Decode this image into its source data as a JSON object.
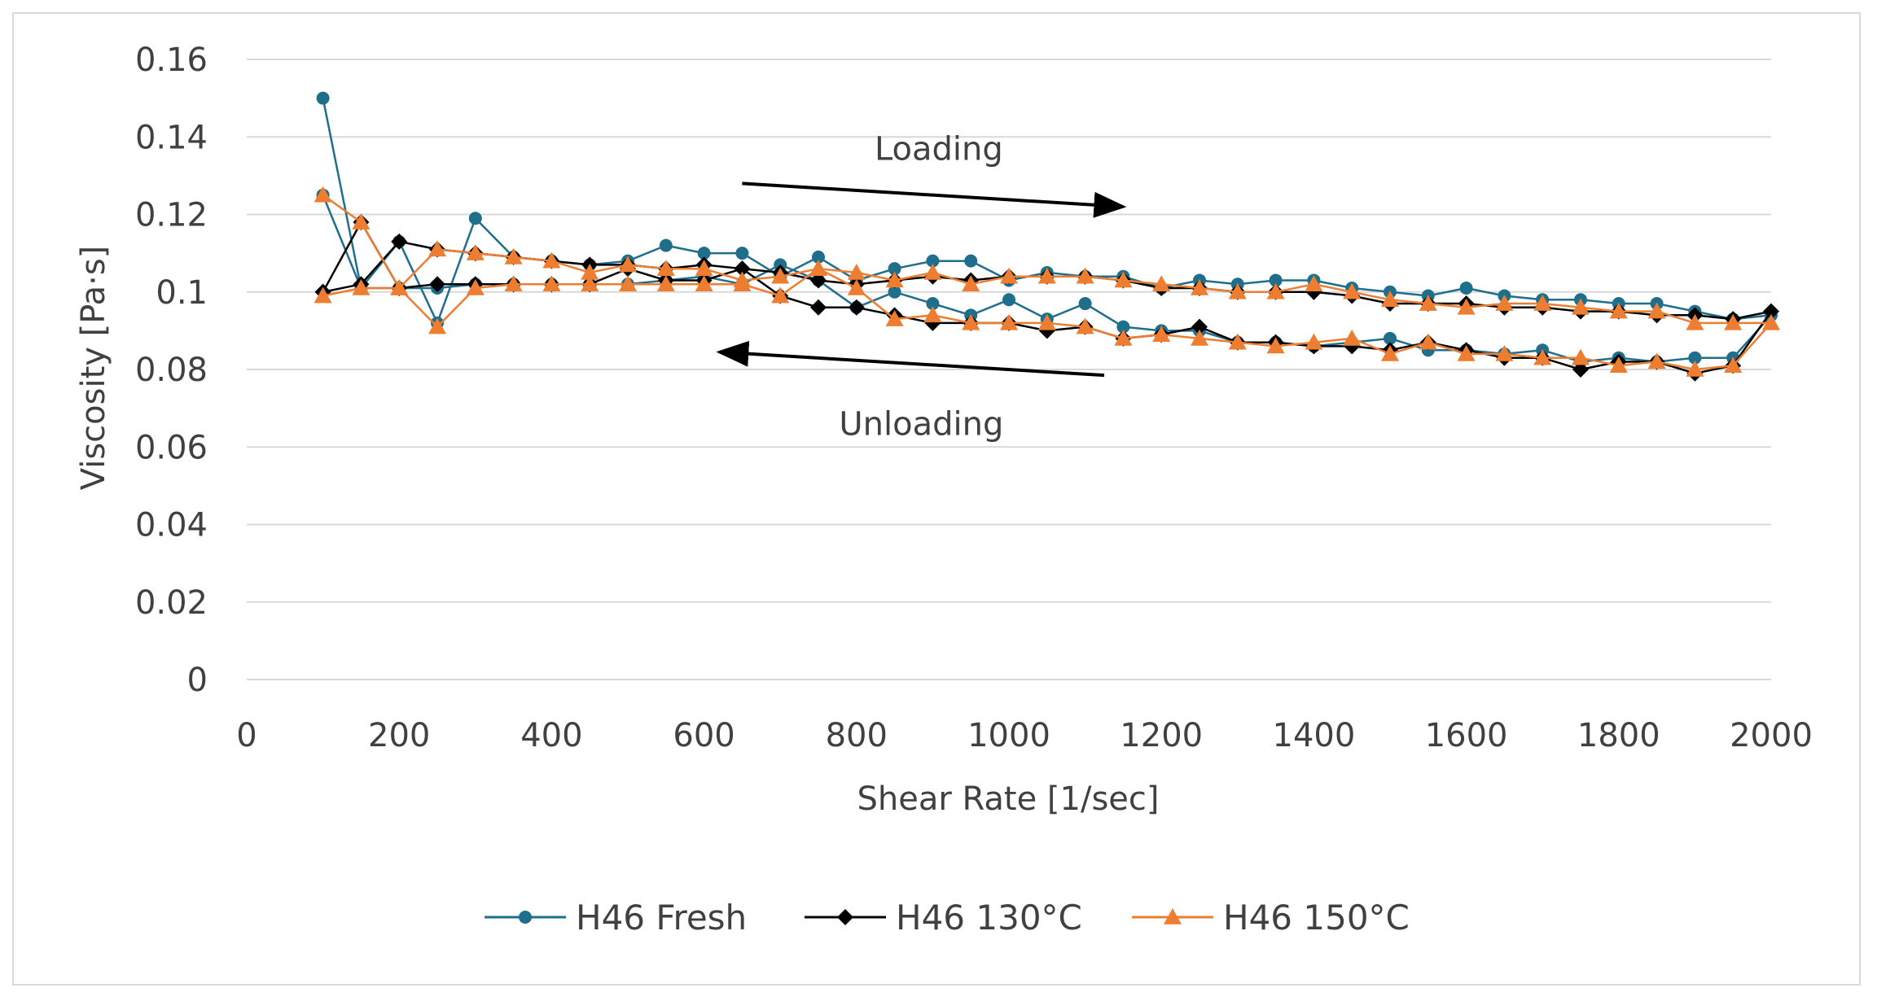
{
  "chart_data": {
    "type": "line",
    "title": "",
    "xlabel": "Shear Rate [1/sec]",
    "ylabel": "Viscosity [Pa·s]",
    "xlim": [
      0,
      2000
    ],
    "ylim": [
      0,
      0.16
    ],
    "xticks": [
      0,
      200,
      400,
      600,
      800,
      1000,
      1200,
      1400,
      1600,
      1800,
      2000
    ],
    "yticks": [
      0,
      0.02,
      0.04,
      0.06,
      0.08,
      0.1,
      0.12,
      0.14,
      0.16
    ],
    "xtick_labels": [
      "0",
      "200",
      "400",
      "600",
      "800",
      "1000",
      "1200",
      "1400",
      "1600",
      "1800",
      "2000"
    ],
    "ytick_labels": [
      "0",
      "0.02",
      "0.04",
      "0.06",
      "0.08",
      "0.1",
      "0.12",
      "0.14",
      "0.16"
    ],
    "grid": "horizontal",
    "legend_position": "bottom",
    "annotations": [
      {
        "text": "Loading",
        "arrow_from": [
          650,
          0.128
        ],
        "arrow_to": [
          1150,
          0.122
        ],
        "label_at": [
          908,
          0.137
        ]
      },
      {
        "text": "Unloading",
        "arrow_from": [
          1125,
          0.0785
        ],
        "arrow_to": [
          620,
          0.0845
        ],
        "label_at": [
          885,
          0.066
        ]
      }
    ],
    "series": [
      {
        "name": "H46 Fresh",
        "color": "#1f6e8c",
        "marker": "circle",
        "x": [
          100,
          150,
          200,
          250,
          300,
          350,
          400,
          450,
          500,
          550,
          600,
          650,
          700,
          750,
          800,
          850,
          900,
          950,
          1000,
          1050,
          1100,
          1150,
          1200,
          1250,
          1300,
          1350,
          1400,
          1450,
          1500,
          1550,
          1600,
          1650,
          1700,
          1750,
          1800,
          1850,
          1900,
          1950,
          2000,
          1950,
          1900,
          1850,
          1800,
          1750,
          1700,
          1650,
          1600,
          1550,
          1500,
          1450,
          1400,
          1350,
          1300,
          1250,
          1200,
          1150,
          1100,
          1050,
          1000,
          950,
          900,
          850,
          800,
          750,
          700,
          650,
          600,
          550,
          500,
          450,
          400,
          350,
          300,
          250,
          200,
          150,
          100
        ],
        "y": [
          0.125,
          0.101,
          0.113,
          0.092,
          0.119,
          0.109,
          0.108,
          0.107,
          0.108,
          0.112,
          0.11,
          0.11,
          0.104,
          0.109,
          0.103,
          0.106,
          0.108,
          0.108,
          0.103,
          0.105,
          0.104,
          0.104,
          0.101,
          0.103,
          0.102,
          0.103,
          0.103,
          0.101,
          0.1,
          0.099,
          0.101,
          0.099,
          0.098,
          0.098,
          0.097,
          0.097,
          0.095,
          0.093,
          0.094,
          0.083,
          0.083,
          0.082,
          0.083,
          0.082,
          0.085,
          0.084,
          0.085,
          0.085,
          0.088,
          0.087,
          0.086,
          0.087,
          0.087,
          0.09,
          0.09,
          0.091,
          0.097,
          0.093,
          0.098,
          0.094,
          0.097,
          0.1,
          0.096,
          0.103,
          0.107,
          0.102,
          0.104,
          0.103,
          0.102,
          0.102,
          0.102,
          0.102,
          0.102,
          0.101,
          0.101,
          0.101,
          0.15
        ]
      },
      {
        "name": "H46 130°C",
        "color": "#000000",
        "marker": "diamond",
        "x": [
          100,
          150,
          200,
          250,
          300,
          350,
          400,
          450,
          500,
          550,
          600,
          650,
          700,
          750,
          800,
          850,
          900,
          950,
          1000,
          1050,
          1100,
          1150,
          1200,
          1250,
          1300,
          1350,
          1400,
          1450,
          1500,
          1550,
          1600,
          1650,
          1700,
          1750,
          1800,
          1850,
          1900,
          1950,
          2000,
          1950,
          1900,
          1850,
          1800,
          1750,
          1700,
          1650,
          1600,
          1550,
          1500,
          1450,
          1400,
          1350,
          1300,
          1250,
          1200,
          1150,
          1100,
          1050,
          1000,
          950,
          900,
          850,
          800,
          750,
          700,
          650,
          600,
          550,
          500,
          450,
          400,
          350,
          300,
          250,
          200,
          150,
          100
        ],
        "y": [
          0.1,
          0.102,
          0.113,
          0.111,
          0.11,
          0.109,
          0.108,
          0.107,
          0.107,
          0.106,
          0.107,
          0.106,
          0.105,
          0.103,
          0.102,
          0.103,
          0.104,
          0.103,
          0.104,
          0.104,
          0.104,
          0.103,
          0.101,
          0.101,
          0.1,
          0.1,
          0.1,
          0.099,
          0.097,
          0.097,
          0.097,
          0.096,
          0.096,
          0.095,
          0.095,
          0.094,
          0.094,
          0.093,
          0.095,
          0.081,
          0.079,
          0.082,
          0.082,
          0.08,
          0.083,
          0.083,
          0.085,
          0.087,
          0.085,
          0.086,
          0.086,
          0.087,
          0.087,
          0.091,
          0.089,
          0.088,
          0.091,
          0.09,
          0.092,
          0.092,
          0.092,
          0.094,
          0.096,
          0.096,
          0.099,
          0.106,
          0.103,
          0.103,
          0.106,
          0.102,
          0.102,
          0.102,
          0.102,
          0.102,
          0.101,
          0.118,
          0.1
        ]
      },
      {
        "name": "H46 150°C",
        "color": "#ed7d31",
        "marker": "triangle",
        "x": [
          100,
          150,
          200,
          250,
          300,
          350,
          400,
          450,
          500,
          550,
          600,
          650,
          700,
          750,
          800,
          850,
          900,
          950,
          1000,
          1050,
          1100,
          1150,
          1200,
          1250,
          1300,
          1350,
          1400,
          1450,
          1500,
          1550,
          1600,
          1650,
          1700,
          1750,
          1800,
          1850,
          1900,
          1950,
          2000,
          1950,
          1900,
          1850,
          1800,
          1750,
          1700,
          1650,
          1600,
          1550,
          1500,
          1450,
          1400,
          1350,
          1300,
          1250,
          1200,
          1150,
          1100,
          1050,
          1000,
          950,
          900,
          850,
          800,
          750,
          700,
          650,
          600,
          550,
          500,
          450,
          400,
          350,
          300,
          250,
          200,
          150,
          100
        ],
        "y": [
          0.125,
          0.118,
          0.101,
          0.111,
          0.11,
          0.109,
          0.108,
          0.105,
          0.107,
          0.106,
          0.106,
          0.103,
          0.104,
          0.106,
          0.105,
          0.103,
          0.105,
          0.102,
          0.104,
          0.104,
          0.104,
          0.103,
          0.102,
          0.101,
          0.1,
          0.1,
          0.102,
          0.1,
          0.098,
          0.097,
          0.096,
          0.097,
          0.097,
          0.096,
          0.095,
          0.095,
          0.092,
          0.092,
          0.092,
          0.081,
          0.08,
          0.082,
          0.081,
          0.083,
          0.083,
          0.084,
          0.084,
          0.087,
          0.084,
          0.088,
          0.087,
          0.086,
          0.087,
          0.088,
          0.089,
          0.088,
          0.091,
          0.092,
          0.092,
          0.092,
          0.094,
          0.093,
          0.101,
          0.106,
          0.099,
          0.102,
          0.102,
          0.102,
          0.102,
          0.102,
          0.102,
          0.102,
          0.101,
          0.091,
          0.101,
          0.101,
          0.099
        ]
      }
    ]
  }
}
